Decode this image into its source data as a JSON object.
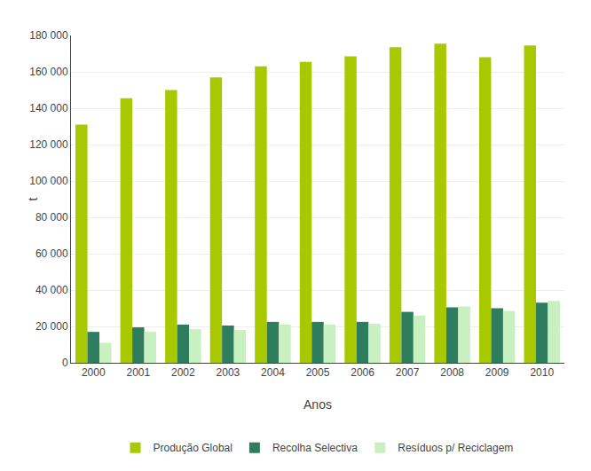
{
  "chart_data": {
    "type": "bar",
    "xlabel": "Anos",
    "ylabel": "t",
    "categories": [
      "2000",
      "2001",
      "2002",
      "2003",
      "2004",
      "2005",
      "2006",
      "2007",
      "2008",
      "2009",
      "2010"
    ],
    "series": [
      {
        "name": "Produção Global",
        "color": "#a8c800",
        "values": [
          131000,
          145500,
          150000,
          157000,
          163000,
          165500,
          168500,
          173500,
          175500,
          168000,
          174500
        ]
      },
      {
        "name": "Recolha Selectiva",
        "color": "#2e7d5e",
        "values": [
          17000,
          19500,
          21000,
          20500,
          22500,
          22500,
          22500,
          28000,
          30500,
          30000,
          33000
        ]
      },
      {
        "name": "Resíduos p/ Reciclagem",
        "color": "#c8f0c0",
        "values": [
          11000,
          17000,
          18500,
          18000,
          21000,
          21000,
          21500,
          26000,
          31000,
          28500,
          34000
        ]
      }
    ],
    "ylim": [
      0,
      180000
    ],
    "yticks": [
      0,
      {
        "value": 20000,
        "label": "20 000"
      },
      {
        "value": 40000,
        "label": "40 000"
      },
      {
        "value": 60000,
        "label": "60 000"
      },
      {
        "value": 80000,
        "label": "80 000"
      },
      {
        "value": 100000,
        "label": "100 000"
      },
      {
        "value": 120000,
        "label": "120 000"
      },
      {
        "value": 140000,
        "label": "140 000"
      },
      {
        "value": 160000,
        "label": "160 000"
      },
      {
        "value": 180000,
        "label": "180 000"
      }
    ],
    "grid": true,
    "legend": "bottom"
  }
}
